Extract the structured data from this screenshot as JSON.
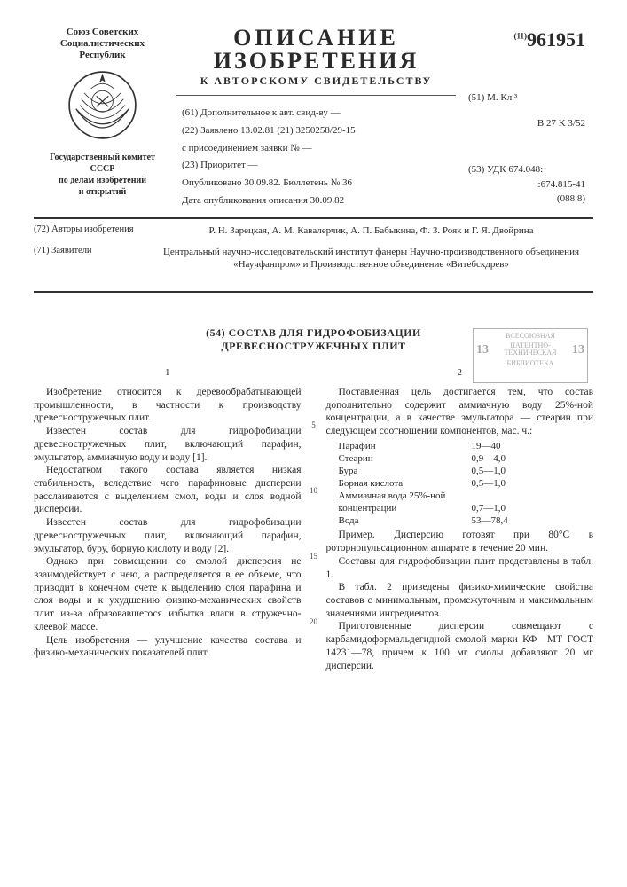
{
  "header": {
    "issuer_line1": "Союз Советских",
    "issuer_line2": "Социалистических",
    "issuer_line3": "Республик",
    "committee_l1": "Государственный комитет",
    "committee_l2": "СССР",
    "committee_l3": "по делам изобретений",
    "committee_l4": "и открытий",
    "doc_kind_l1": "ОПИСАНИЕ",
    "doc_kind_l2": "ИЗОБРЕТЕНИЯ",
    "doc_kind_sub": "К АВТОРСКОМУ СВИДЕТЕЛЬСТВУ",
    "pub_prefix": "(11)",
    "pub_number": "961951"
  },
  "biblio": {
    "f61": "(61) Дополнительное к авт. свид-ву —",
    "f22": "(22) Заявлено 13.02.81   (21) 3250258/29-15",
    "f_join": "с присоединением заявки № —",
    "f23": "(23) Приоритет —",
    "f_pub": "Опубликовано 30.09.82. Бюллетень № 36",
    "f_pubdate": "Дата опубликования описания 30.09.82",
    "f51_label": "(51) М. Кл.³",
    "f51_val": "B 27 K 3/52",
    "f53_label": "(53) УДК 674.048:",
    "f53_val1": ":674.815-41",
    "f53_val2": "(088.8)"
  },
  "parties": {
    "f72_label": "(72) Авторы изобретения",
    "f72_val": "Р. Н. Зарецкая, А. М. Кавалерчик, А. П. Бабыкина, Ф. З. Рояк и Г. Я. Двойрина",
    "f71_label": "(71) Заявители",
    "f71_val": "Центральный научно-исследовательский институт фанеры Научно-производственного объединения «Научфанпром» и Производственное объединение «Витебскдрев»"
  },
  "stamp": {
    "l1": "ВСЕСОЮЗНАЯ",
    "l2": "ПАТЕНТНО-",
    "l3": "ТЕХНИЧЕСКАЯ",
    "l4": "БИБЛИОТЕКА",
    "n1": "13",
    "n2": "13"
  },
  "title": {
    "num": "(54) СОСТАВ ДЛЯ ГИДРОФОБИЗАЦИИ",
    "line2": "ДРЕВЕСНОСТРУЖЕЧНЫХ ПЛИТ"
  },
  "coln": {
    "c1": "1",
    "c2": "2"
  },
  "gut": {
    "g5": "5",
    "g10": "10",
    "g15": "15",
    "g20": "20"
  },
  "col1": {
    "p1": "Изобретение относится к деревообрабатывающей промышленности, в частности к производству древесностружечных плит.",
    "p2": "Известен состав для гидрофобизации древесностружечных плит, включающий парафин, эмульгатор, аммиачную воду и воду [1].",
    "p3": "Недостатком такого состава является низкая стабильность, вследствие чего парафиновые дисперсии расслаиваются с выделением смол, воды и слоя водной дисперсии.",
    "p4": "Известен состав для гидрофобизации древесностружечных плит, включающий парафин, эмульгатор, буру, борную кислоту и воду [2].",
    "p5": "Однако при совмещении со смолой дисперсия не взаимодействует с нею, а распределяется в ее объеме, что приводит в конечном счете к выделению слоя парафина и слоя воды и к ухудшению физико-механических свойств плит из-за образовавшегося избытка влаги в стружечно-клеевой массе.",
    "p6": "Цель изобретения — улучшение качества состава и физико-механических показателей плит."
  },
  "col2": {
    "p1": "Поставленная цель достигается тем, что состав дополнительно содержит аммиачную воду 25%-ной концентрации, а в качестве эмульгатора — стеарин при следующем соотношении компонентов, мас. ч.:",
    "ingredients": [
      {
        "name": "Парафин",
        "val": "19—40"
      },
      {
        "name": "Стеарин",
        "val": "0,9—4,0"
      },
      {
        "name": "Бура",
        "val": "0,5—1,0"
      },
      {
        "name": "Борная кислота",
        "val": "0,5—1,0"
      },
      {
        "name": "Аммиачная вода 25%-ной",
        "val": ""
      },
      {
        "name": "концентрации",
        "val": "0,7—1,0"
      },
      {
        "name": "Вода",
        "val": "53—78,4"
      }
    ],
    "p2": "Пример. Дисперсию готовят при 80°С в роторнопульсационном аппарате в течение 20 мин.",
    "p3": "Составы для гидрофобизации плит представлены в табл. 1.",
    "p4": "В табл. 2 приведены физико-химические свойства составов с минимальным, промежуточным и максимальным значениями ингредиентов.",
    "p5": "Приготовленные дисперсии совмещают с карбамидоформальдегидной смолой марки КФ—МТ ГОСТ 14231—78, причем к 100 мг смолы добавляют 20 мг дисперсии."
  }
}
